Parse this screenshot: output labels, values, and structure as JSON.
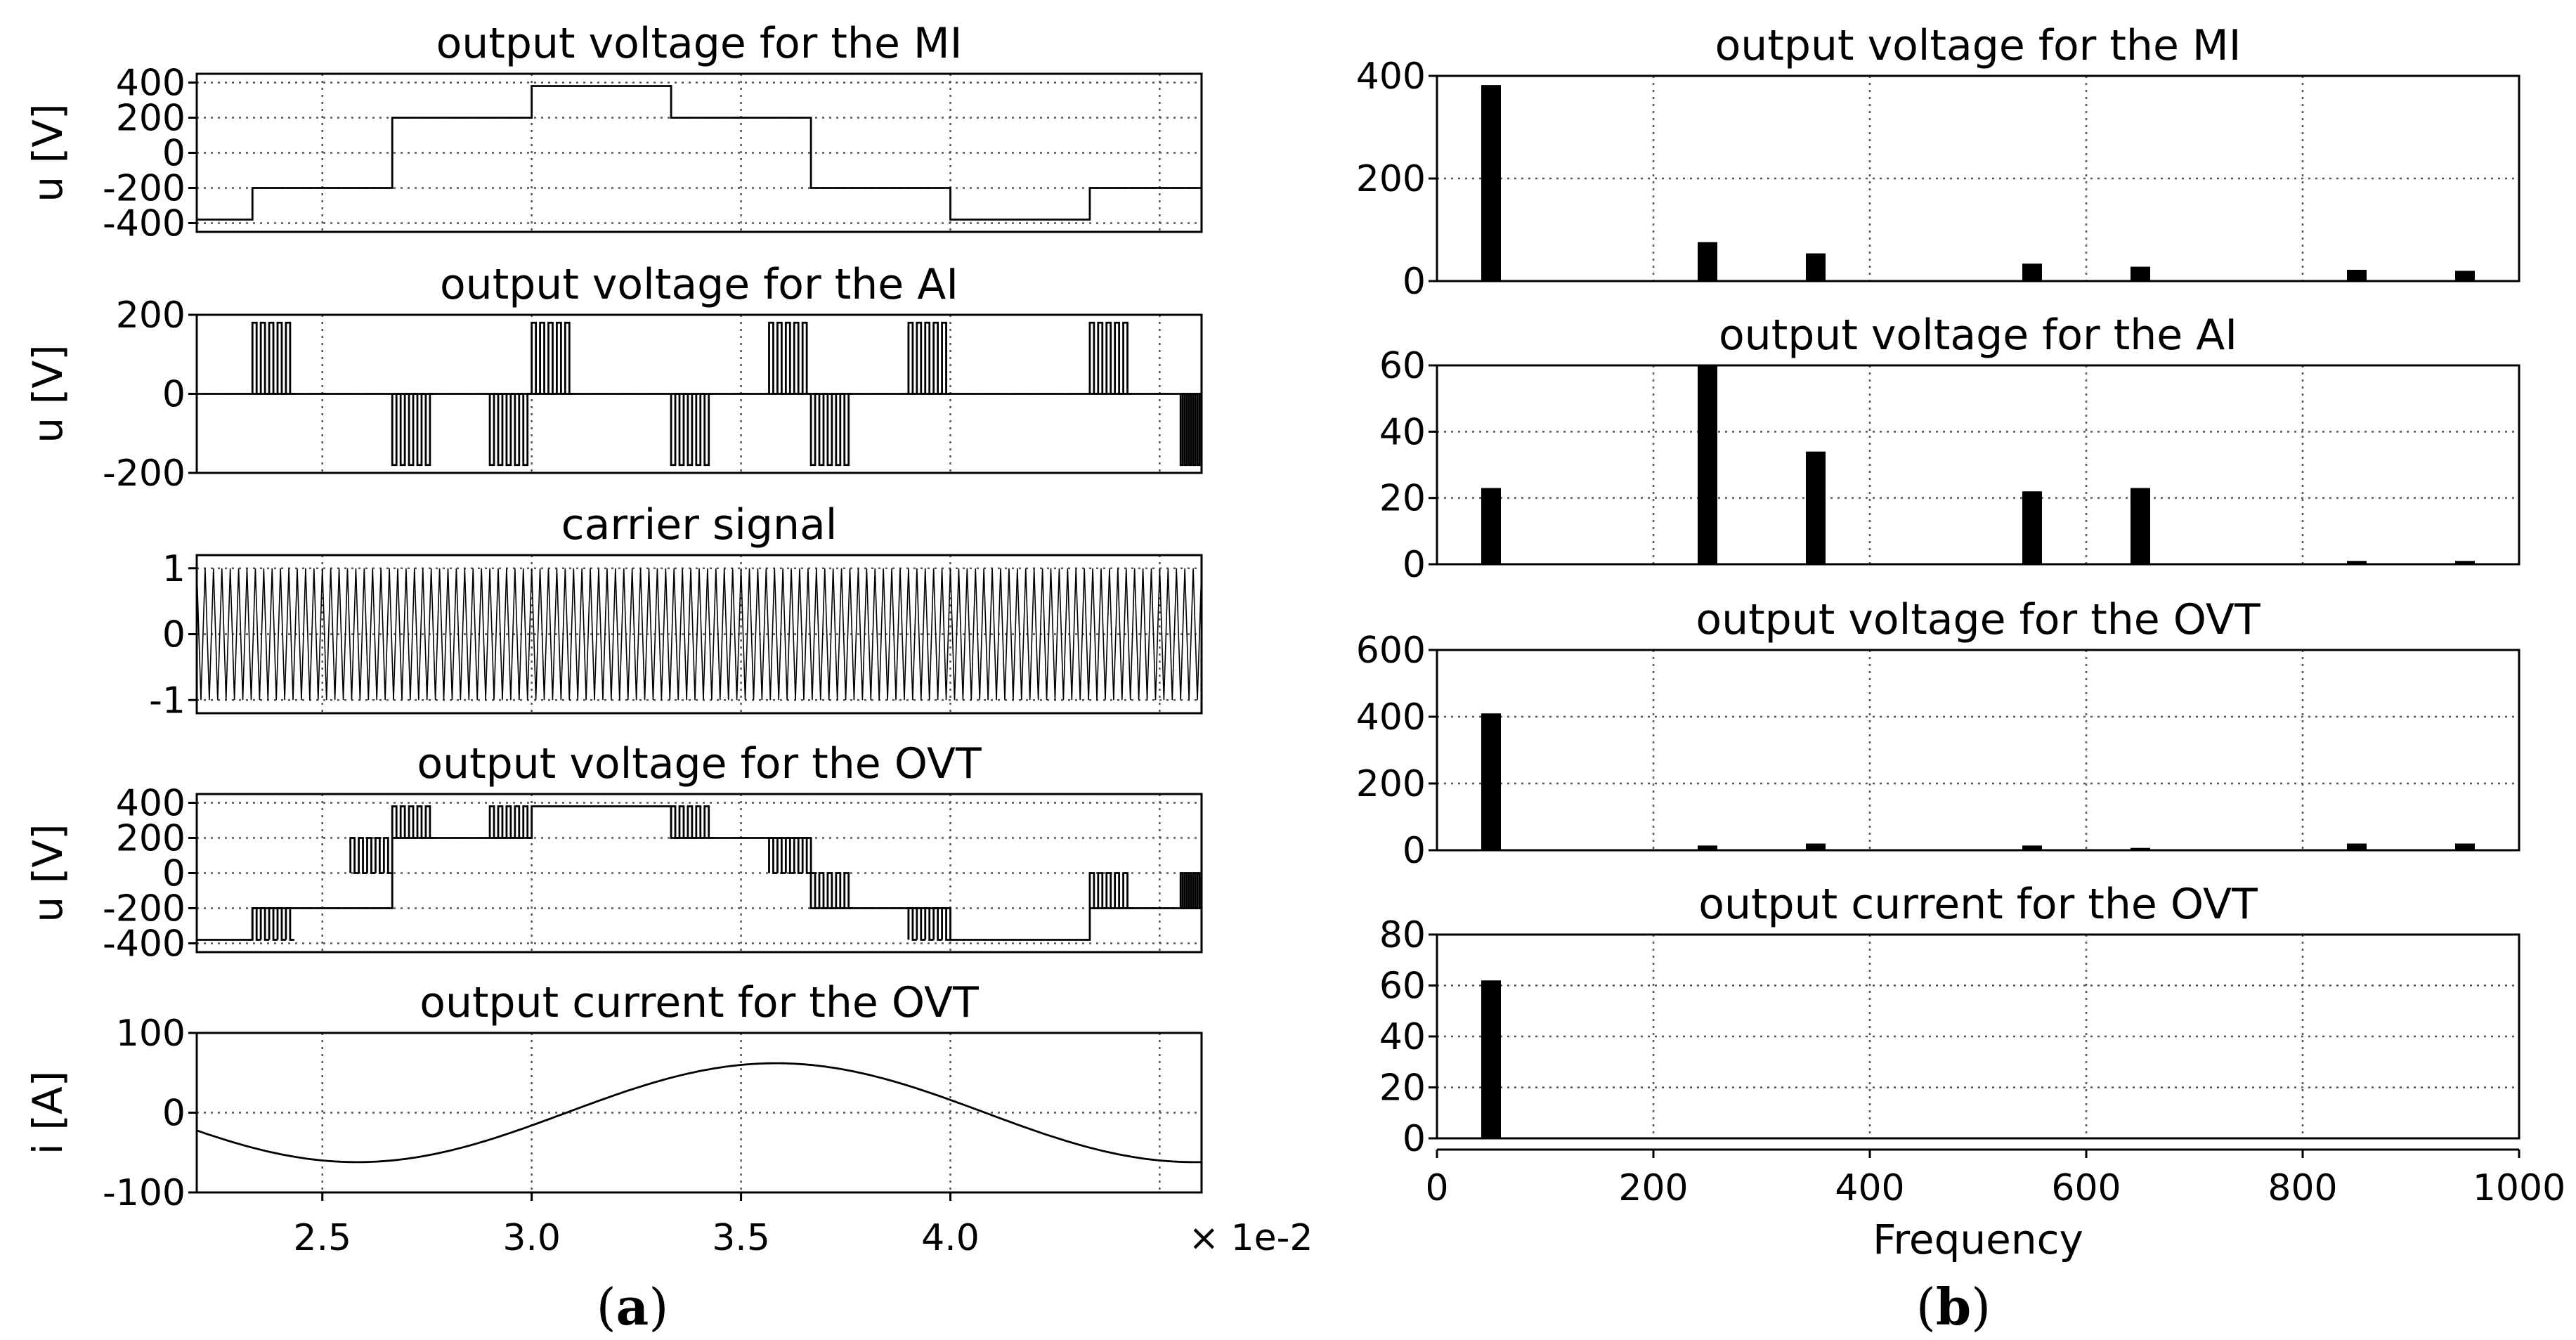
{
  "chart_data": [
    {
      "id": "a1",
      "type": "line",
      "title": "output voltage for the MI",
      "ylabel": "u [V]",
      "ylim": [
        -450,
        450
      ],
      "yticks": [
        400,
        200,
        0,
        -200,
        -400
      ],
      "ytick_labels": [
        "400",
        "200",
        "0",
        "-200",
        "-400"
      ],
      "xlim": [
        2.2,
        4.6
      ],
      "xgrid": [
        2.5,
        3.0,
        3.5,
        4.0,
        4.5
      ],
      "series": [
        {
          "name": "MI",
          "kind": "staircase",
          "steps": [
            [
              2.2,
              -380
            ],
            [
              2.333,
              -200
            ],
            [
              2.667,
              200
            ],
            [
              3.0,
              380
            ],
            [
              3.333,
              200
            ],
            [
              3.667,
              -200
            ],
            [
              4.0,
              -380
            ],
            [
              4.333,
              -200
            ],
            [
              4.6,
              -200
            ]
          ]
        }
      ]
    },
    {
      "id": "a2",
      "type": "line",
      "title": "output voltage for the AI",
      "ylabel": "u [V]",
      "ylim": [
        -200,
        200
      ],
      "yticks": [
        200,
        0,
        -200
      ],
      "ytick_labels": [
        "200",
        "0",
        "-200"
      ],
      "xlim": [
        2.2,
        4.6
      ],
      "xgrid": [
        2.5,
        3.0,
        3.5,
        4.0,
        4.5
      ],
      "series": [
        {
          "name": "AI",
          "kind": "pwm_bursts",
          "amplitude": 180,
          "pulses_per_burst": 5,
          "bursts": [
            [
              2.333,
              2.433,
              1
            ],
            [
              2.667,
              2.767,
              -1
            ],
            [
              3.0,
              3.1,
              1
            ],
            [
              2.9,
              3.0,
              -1
            ],
            [
              3.333,
              3.433,
              -1
            ],
            [
              3.567,
              3.667,
              1
            ],
            [
              3.667,
              3.767,
              -1
            ],
            [
              3.9,
              4.0,
              1
            ],
            [
              4.333,
              4.433,
              1
            ],
            [
              4.55,
              4.6,
              -1
            ]
          ]
        }
      ]
    },
    {
      "id": "a3",
      "type": "line",
      "title": "carrier signal",
      "ylabel": "",
      "ylim": [
        -1.2,
        1.2
      ],
      "yticks": [
        1,
        0,
        -1
      ],
      "ytick_labels": [
        "1",
        "0",
        "-1"
      ],
      "xlim": [
        2.2,
        4.6
      ],
      "xgrid": [
        2.5,
        3.0,
        3.5,
        4.0,
        4.5
      ],
      "series": [
        {
          "name": "carrier",
          "kind": "triangle",
          "amplitude": 1,
          "period": 0.02
        }
      ]
    },
    {
      "id": "a4",
      "type": "line",
      "title": "output voltage for the OVT",
      "ylabel": "u [V]",
      "ylim": [
        -450,
        450
      ],
      "yticks": [
        400,
        200,
        0,
        -200,
        -400
      ],
      "ytick_labels": [
        "400",
        "200",
        "0",
        "-200",
        "-400"
      ],
      "xlim": [
        2.2,
        4.6
      ],
      "xgrid": [
        2.5,
        3.0,
        3.5,
        4.0,
        4.5
      ],
      "series": [
        {
          "name": "OVT",
          "kind": "staircase_pwm",
          "steps": [
            [
              2.2,
              -380
            ],
            [
              2.333,
              -200
            ],
            [
              2.667,
              200
            ],
            [
              3.0,
              380
            ],
            [
              3.333,
              200
            ],
            [
              3.667,
              -200
            ],
            [
              4.0,
              -380
            ],
            [
              4.333,
              -200
            ],
            [
              4.6,
              -200
            ]
          ],
          "bursts": [
            [
              2.333,
              2.433,
              -380,
              -200
            ],
            [
              2.567,
              2.667,
              0,
              200
            ],
            [
              2.667,
              2.767,
              200,
              380
            ],
            [
              2.9,
              3.0,
              200,
              380
            ],
            [
              3.333,
              3.433,
              200,
              380
            ],
            [
              3.567,
              3.667,
              0,
              200
            ],
            [
              3.667,
              3.767,
              -200,
              0
            ],
            [
              3.9,
              4.0,
              -380,
              -200
            ],
            [
              4.333,
              4.433,
              -200,
              0
            ],
            [
              4.55,
              4.6,
              -200,
              0
            ]
          ]
        }
      ]
    },
    {
      "id": "a5",
      "type": "line",
      "title": "output current for the OVT",
      "ylabel": "i [A]",
      "ylim": [
        -100,
        100
      ],
      "yticks": [
        100,
        0,
        -100
      ],
      "ytick_labels": [
        "100",
        "0",
        "-100"
      ],
      "xlim": [
        2.2,
        4.6
      ],
      "xgrid": [
        2.5,
        3.0,
        3.5,
        4.0,
        4.5
      ],
      "xtick_labels": [
        "2.5",
        "3.0",
        "3.5",
        "4.0"
      ],
      "xunit_label": "× 1e-2",
      "series": [
        {
          "name": "current",
          "kind": "sine",
          "amplitude": 62,
          "phase_peak": 3.583,
          "period": 2.0
        }
      ]
    },
    {
      "id": "b1",
      "type": "bar",
      "title": "output voltage for the MI",
      "ylim": [
        0,
        400
      ],
      "yticks": [
        400,
        200,
        0
      ],
      "ytick_labels": [
        "400",
        "200",
        "0"
      ],
      "xlim": [
        0,
        1000
      ],
      "xgrid": [
        0,
        200,
        400,
        600,
        800,
        1000
      ],
      "x": [
        50,
        250,
        350,
        550,
        650,
        850,
        950
      ],
      "values": [
        382,
        76,
        54,
        34,
        28,
        22,
        20
      ]
    },
    {
      "id": "b2",
      "type": "bar",
      "title": "output voltage for the AI",
      "ylim": [
        0,
        60
      ],
      "yticks": [
        60,
        40,
        20,
        0
      ],
      "ytick_labels": [
        "60",
        "40",
        "20",
        "0"
      ],
      "xlim": [
        0,
        1000
      ],
      "xgrid": [
        0,
        200,
        400,
        600,
        800,
        1000
      ],
      "x": [
        50,
        250,
        350,
        550,
        650,
        850,
        950
      ],
      "values": [
        23,
        60,
        34,
        22,
        23,
        1,
        1
      ]
    },
    {
      "id": "b3",
      "type": "bar",
      "title": "output voltage for the OVT",
      "ylim": [
        0,
        600
      ],
      "yticks": [
        600,
        400,
        200,
        0
      ],
      "ytick_labels": [
        "600",
        "400",
        "200",
        "0"
      ],
      "xlim": [
        0,
        1000
      ],
      "xgrid": [
        0,
        200,
        400,
        600,
        800,
        1000
      ],
      "x": [
        50,
        250,
        350,
        550,
        650,
        850,
        950
      ],
      "values": [
        410,
        14,
        20,
        14,
        7,
        20,
        20
      ]
    },
    {
      "id": "b4",
      "type": "bar",
      "title": "output current for the OVT",
      "ylim": [
        0,
        80
      ],
      "yticks": [
        80,
        60,
        40,
        20,
        0
      ],
      "ytick_labels": [
        "80",
        "60",
        "40",
        "20",
        "0"
      ],
      "xlim": [
        0,
        1000
      ],
      "xgrid": [
        0,
        200,
        400,
        600,
        800,
        1000
      ],
      "xtick_values": [
        0,
        200,
        400,
        600,
        800,
        1000
      ],
      "xtick_labels": [
        "0",
        "200",
        "400",
        "600",
        "800",
        "1000"
      ],
      "xlabel": "Frequency",
      "x": [
        50
      ],
      "values": [
        62
      ]
    }
  ],
  "captions": {
    "a": {
      "open": "(",
      "letter": "a",
      "close": ")"
    },
    "b": {
      "open": "(",
      "letter": "b",
      "close": ")"
    }
  }
}
